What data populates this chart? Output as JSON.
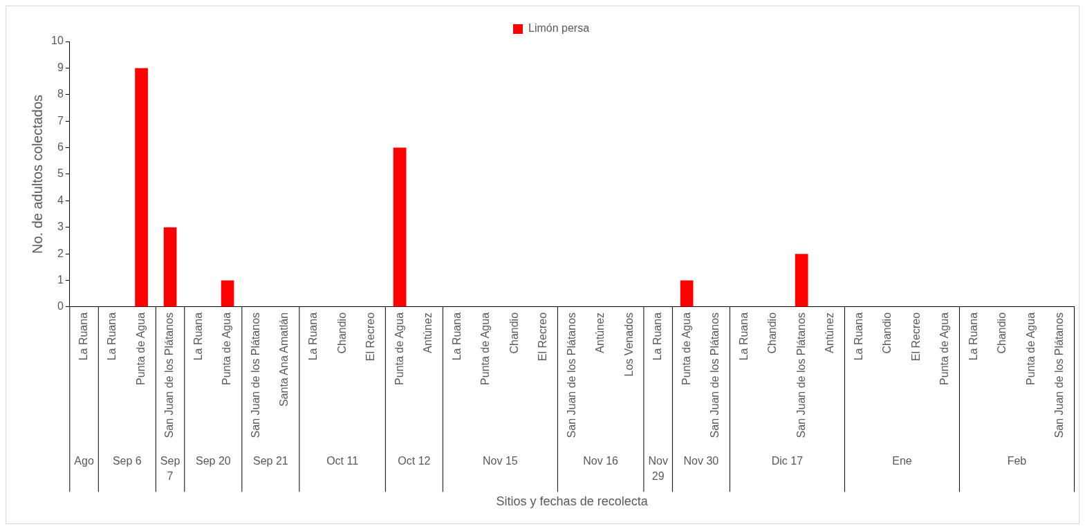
{
  "chart_data": {
    "type": "bar",
    "xlabel": "Sitios y fechas de recolecta",
    "ylabel": "No. de adultos colectados",
    "categories": [
      "La Ruana",
      "La Ruana",
      "Punta de Agua",
      "San Juan de los Plátanos",
      "La Ruana",
      "Punta de Agua",
      "San Juan de los Plátanos",
      "Santa Ana Amatlán",
      "La Ruana",
      "Chandio",
      "El Recreo",
      "Punta de Agua",
      "Antúnez",
      "La Ruana",
      "Punta de Agua",
      "Chandio",
      "El Recreo",
      "San Juan de los Plátanos",
      "Antúnez",
      "Los Venados",
      "La Ruana",
      "Punta de Agua",
      "San Juan de los Plátanos",
      "La Ruana",
      "Chandio",
      "San Juan de los Plátanos",
      "Antúnez",
      "La Ruana",
      "Chandio",
      "El Recreo",
      "Punta de Agua",
      "La Ruana",
      "Chandio",
      "Punta de Agua",
      "San Juan de los Plátanos"
    ],
    "annotations": [
      "Ago",
      "Sep 6",
      "Sep 7",
      "Sep 20",
      "Sep 21",
      "Oct 11",
      "Oct 12",
      "Nov 15",
      "Nov 16",
      "Nov 29",
      "Nov 30",
      "Dic 17",
      "Ene",
      "Feb"
    ],
    "series": [
      {
        "name": "Limón persa",
        "color": "#ff0000",
        "values": [
          0,
          0,
          9,
          3,
          0,
          1,
          0,
          0,
          0,
          0,
          0,
          6,
          0,
          0,
          0,
          0,
          0,
          0,
          0,
          0,
          0,
          1,
          0,
          0,
          0,
          2,
          0,
          0,
          0,
          0,
          0,
          0,
          0,
          0,
          0
        ]
      }
    ],
    "ylim": [
      0,
      10
    ],
    "yticks": [
      0,
      1,
      2,
      3,
      4,
      5,
      6,
      7,
      8,
      9,
      10
    ],
    "grid": false,
    "legend": "top"
  }
}
